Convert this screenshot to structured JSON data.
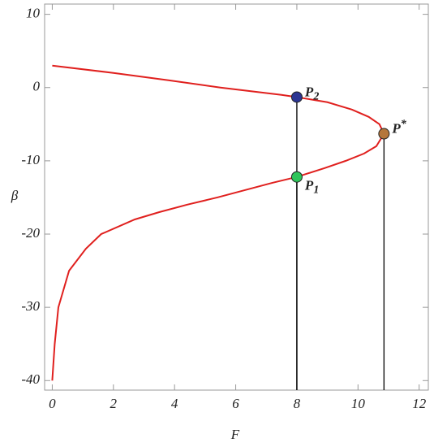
{
  "chart_data": {
    "type": "line",
    "x_label": "F",
    "y_label": "β",
    "xlim": [
      -0.25,
      12.3
    ],
    "ylim": [
      -41.3,
      11.4
    ],
    "xticks": [
      0,
      2,
      4,
      6,
      8,
      10,
      12
    ],
    "yticks": [
      10,
      0,
      -10,
      -20,
      -30,
      -40
    ],
    "series": [
      {
        "color": "#e0201e",
        "x": [
          0,
          2.0,
          3.8,
          5.5,
          7.5,
          8,
          9.0,
          9.8,
          10.35,
          10.7,
          10.85,
          10.6,
          10.2,
          9.6,
          8.9,
          8,
          7.2,
          6.3,
          5.4,
          4.4,
          3.5,
          2.7,
          1.6,
          1.1,
          0.55,
          0.2,
          0.08,
          0.0
        ],
        "values": [
          3,
          2,
          1,
          0,
          -1,
          -1.3,
          -2,
          -3,
          -4,
          -5,
          -6.3,
          -8,
          -9,
          -10,
          -11,
          -12.2,
          -13,
          -14,
          -15,
          -16,
          -17,
          -18,
          -20,
          -22,
          -25,
          -30,
          -35,
          -40
        ]
      }
    ],
    "points": [
      {
        "name": "P",
        "sub": "2",
        "x": 8,
        "y": -1.3,
        "color": "#2c3593"
      },
      {
        "name": "P",
        "sup": "*",
        "x": 10.85,
        "y": -6.3,
        "color": "#b5763a"
      },
      {
        "name": "P",
        "sub": "1",
        "x": 8,
        "y": -12.2,
        "color": "#2fc45a"
      }
    ]
  }
}
